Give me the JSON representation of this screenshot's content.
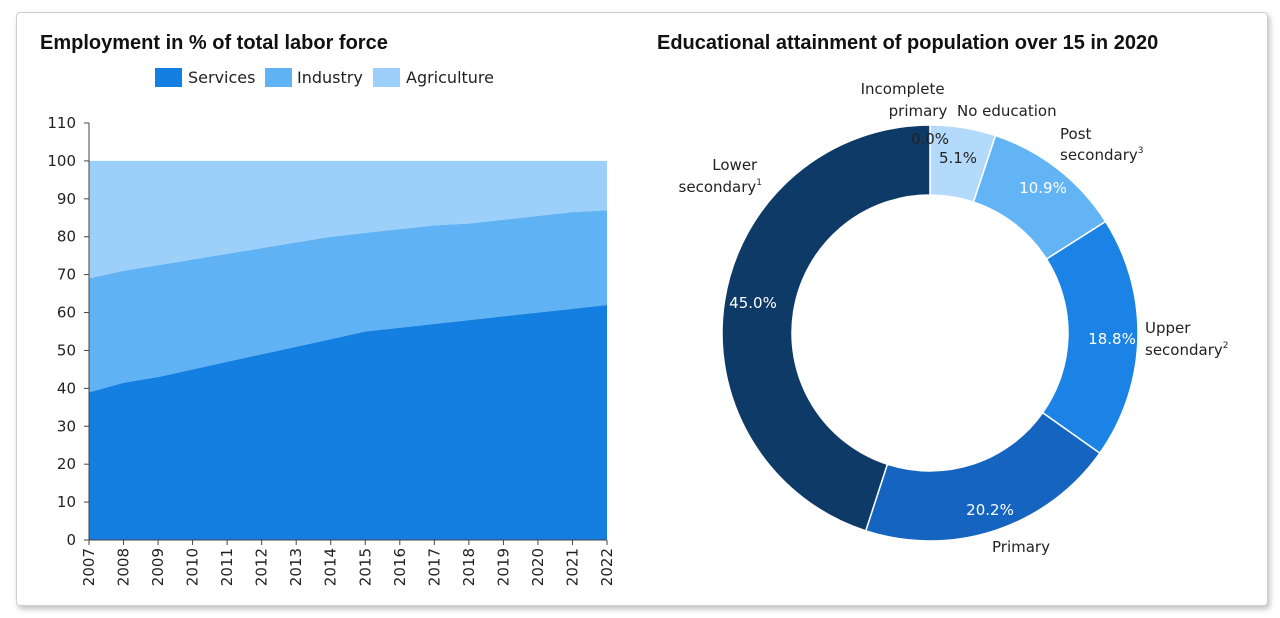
{
  "colors": {
    "services": "#137fe0",
    "industry": "#5fb2f3",
    "agriculture": "#9ccffa",
    "lower_secondary": "#0d3a66",
    "primary": "#1565c0",
    "upper_secondary": "#1b82e6",
    "post_secondary": "#62b4f5",
    "no_education": "#b3dafb",
    "incomplete_primary": "#e6f2fd"
  },
  "chart_data": [
    {
      "type": "area",
      "title": "Employment in % of total labor force",
      "xlabel": "",
      "ylabel": "",
      "x": [
        "2007",
        "2008",
        "2009",
        "2010",
        "2011",
        "2012",
        "2013",
        "2014",
        "2015",
        "2016",
        "2017",
        "2018",
        "2019",
        "2020",
        "2021",
        "2022"
      ],
      "ylim": [
        0,
        110
      ],
      "yticks": [
        "0",
        "10",
        "20",
        "30",
        "40",
        "50",
        "60",
        "70",
        "80",
        "90",
        "100",
        "110"
      ],
      "stacked": true,
      "legend_position": "top",
      "series": [
        {
          "name": "Services",
          "values": [
            39,
            41.5,
            43,
            45,
            47,
            49,
            51,
            53,
            55,
            56,
            57,
            58,
            59,
            60,
            61,
            62
          ]
        },
        {
          "name": "Industry",
          "values": [
            30,
            29.5,
            29.5,
            29,
            28.5,
            28,
            27.5,
            27,
            26,
            26,
            26,
            25.5,
            25.5,
            25.5,
            25.5,
            25
          ]
        },
        {
          "name": "Agriculture",
          "values": [
            31,
            29,
            27.5,
            26,
            24.5,
            23,
            21.5,
            20,
            19,
            18,
            17,
            16.5,
            15.5,
            14.5,
            13.5,
            13
          ]
        }
      ]
    },
    {
      "type": "pie",
      "title": "Educational attainment of population over 15 in 2020",
      "donut": true,
      "slices": [
        {
          "key": "incomplete_primary",
          "label": "Incomplete primary",
          "label_lines": [
            "Incomplete",
            "primary"
          ],
          "value": 0.0,
          "value_label": "0.0%"
        },
        {
          "key": "no_education",
          "label": "No education",
          "label_lines": [
            "No education"
          ],
          "value": 5.1,
          "value_label": "5.1%"
        },
        {
          "key": "post_secondary",
          "label": "Post secondary3",
          "label_lines": [
            "Post",
            "secondary"
          ],
          "sup": "3",
          "value": 10.9,
          "value_label": "10.9%"
        },
        {
          "key": "upper_secondary",
          "label": "Upper secondary2",
          "label_lines": [
            "Upper",
            "secondary"
          ],
          "sup": "2",
          "value": 18.8,
          "value_label": "18.8%"
        },
        {
          "key": "primary",
          "label": "Primary",
          "label_lines": [
            "Primary"
          ],
          "value": 20.2,
          "value_label": "20.2%"
        },
        {
          "key": "lower_secondary",
          "label": "Lower secondary1",
          "label_lines": [
            "Lower",
            "secondary"
          ],
          "sup": "1",
          "value": 45.0,
          "value_label": "45.0%"
        }
      ]
    }
  ]
}
